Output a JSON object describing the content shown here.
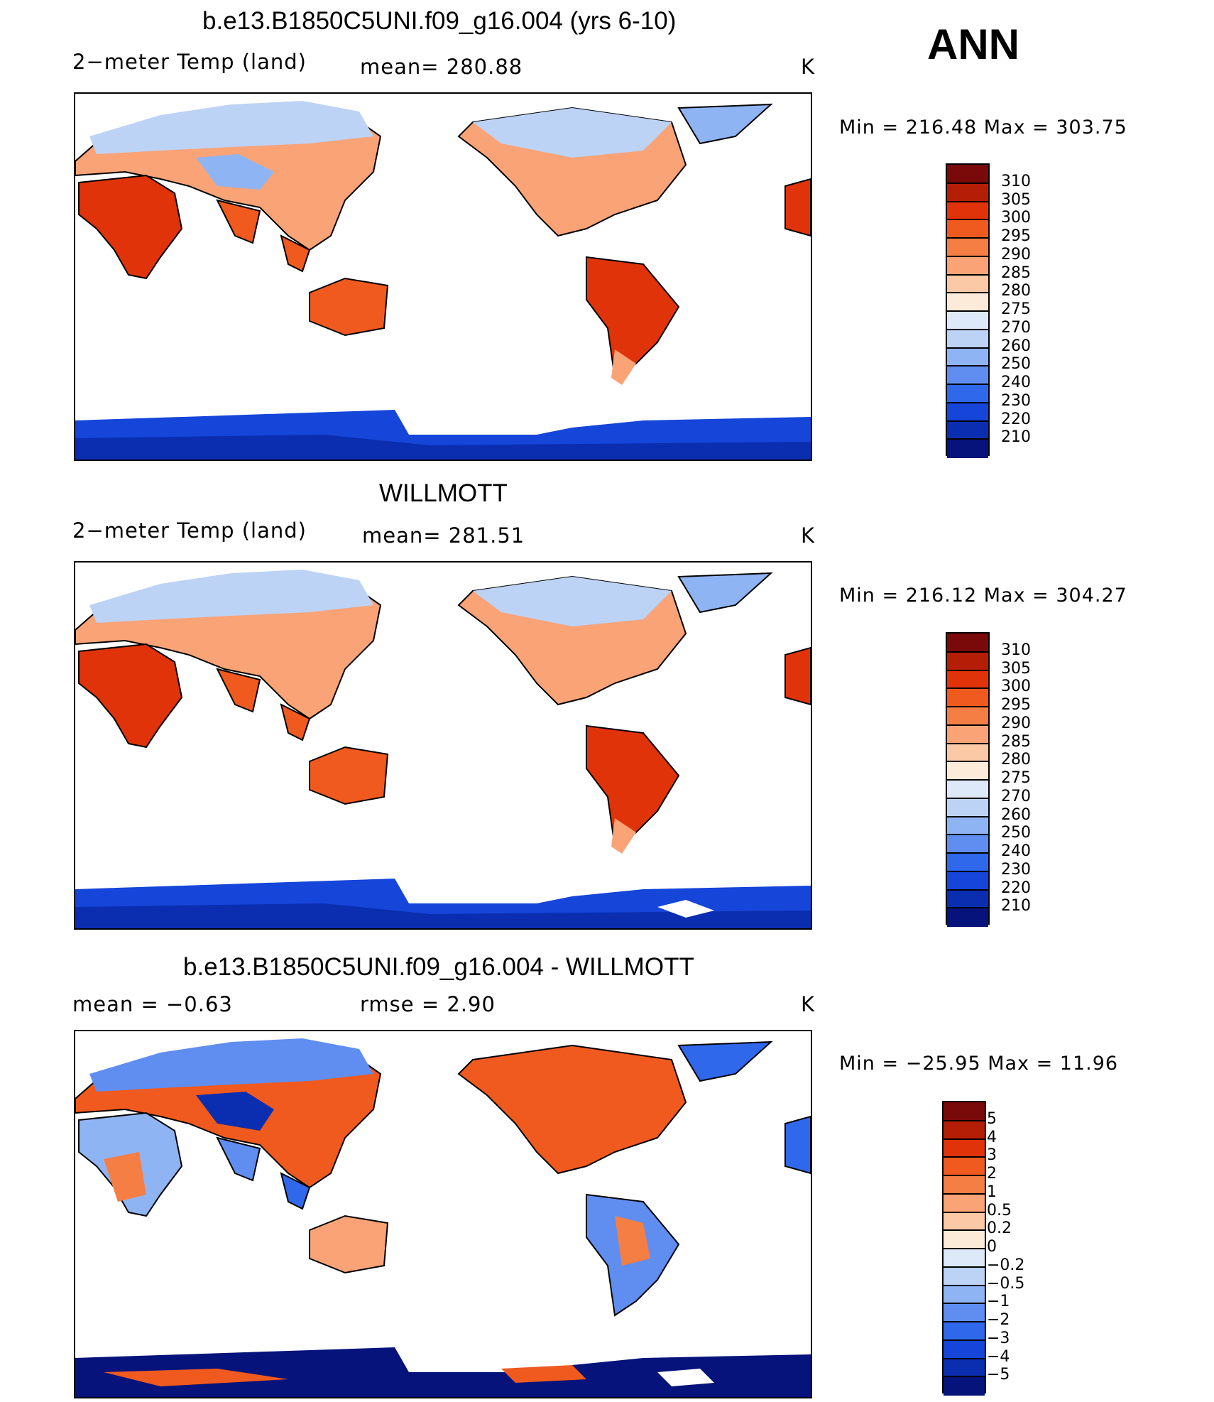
{
  "season": "ANN",
  "units": "K",
  "panels": [
    {
      "id": "model",
      "title": "b.e13.B1850C5UNI.f09_g16.004 (yrs 6-10)",
      "variable": "2−meter Temp (land)",
      "mean_text": "mean=  280.88",
      "units": "K",
      "minmax_text": "Min  =  216.48  Max  =  303.75",
      "colorbar": {
        "ticks": [
          "310",
          "305",
          "300",
          "295",
          "290",
          "285",
          "280",
          "275",
          "270",
          "260",
          "250",
          "240",
          "230",
          "220",
          "210"
        ],
        "colors": [
          "#7a0a0a",
          "#b51e06",
          "#e0330a",
          "#f05a1e",
          "#f57e44",
          "#f9a377",
          "#fbc9a6",
          "#fdebd9",
          "#dde9f8",
          "#bcd3f6",
          "#8fb4f4",
          "#5f8ef0",
          "#3068ec",
          "#1545d9",
          "#0b2eb0",
          "#05137a"
        ]
      }
    },
    {
      "id": "obs",
      "title": "WILLMOTT",
      "variable": "2−meter Temp (land)",
      "mean_text": "mean=  281.51",
      "units": "K",
      "minmax_text": "Min  =  216.12  Max  =  304.27",
      "colorbar": {
        "ticks": [
          "310",
          "305",
          "300",
          "295",
          "290",
          "285",
          "280",
          "275",
          "270",
          "260",
          "250",
          "240",
          "230",
          "220",
          "210"
        ],
        "colors": [
          "#7a0a0a",
          "#b51e06",
          "#e0330a",
          "#f05a1e",
          "#f57e44",
          "#f9a377",
          "#fbc9a6",
          "#fdebd9",
          "#dde9f8",
          "#bcd3f6",
          "#8fb4f4",
          "#5f8ef0",
          "#3068ec",
          "#1545d9",
          "#0b2eb0",
          "#05137a"
        ]
      }
    },
    {
      "id": "diff",
      "title": "b.e13.B1850C5UNI.f09_g16.004 - WILLMOTT",
      "variable": "mean  =    −0.63",
      "mean_text": "rmse  =     2.90",
      "units": "K",
      "minmax_text": "Min  =  −25.95  Max  =    11.96",
      "colorbar": {
        "ticks": [
          "5",
          "4",
          "3",
          "2",
          "1",
          "0.5",
          "0.2",
          "0",
          "−0.2",
          "−0.5",
          "−1",
          "−2",
          "−3",
          "−4",
          "−5"
        ],
        "colors": [
          "#7a0a0a",
          "#b51e06",
          "#e0330a",
          "#f05a1e",
          "#f57e44",
          "#f9a377",
          "#fbc9a6",
          "#fdebd9",
          "#dde9f8",
          "#bcd3f6",
          "#8fb4f4",
          "#5f8ef0",
          "#3068ec",
          "#1545d9",
          "#0b2eb0",
          "#05137a"
        ]
      }
    }
  ]
}
